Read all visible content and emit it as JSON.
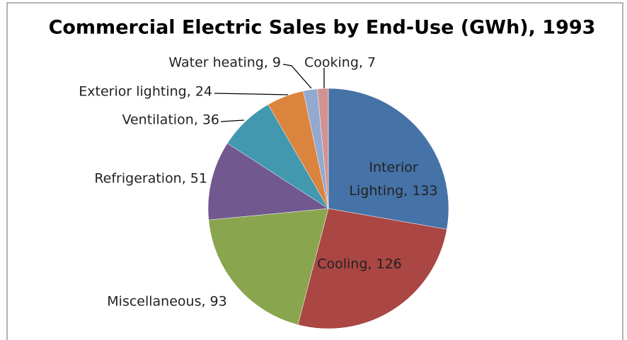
{
  "chart_data": {
    "type": "pie",
    "title": "Commercial Electric Sales by End-Use (GWh), 1993",
    "values": [
      133,
      126,
      93,
      51,
      36,
      24,
      9,
      7
    ],
    "value_labels": [
      "Interior Lighting, 133",
      "Cooling, 126",
      "Miscellaneous, 93",
      "Refrigeration, 51",
      "Ventilation, 36",
      "Exterior lighting, 24",
      "Water heating, 9",
      "Cooking, 7"
    ],
    "colors": [
      "#4572a7",
      "#aa4643",
      "#89a54e",
      "#71588f",
      "#4198af",
      "#db843d",
      "#93a9cf",
      "#d19392"
    ]
  }
}
